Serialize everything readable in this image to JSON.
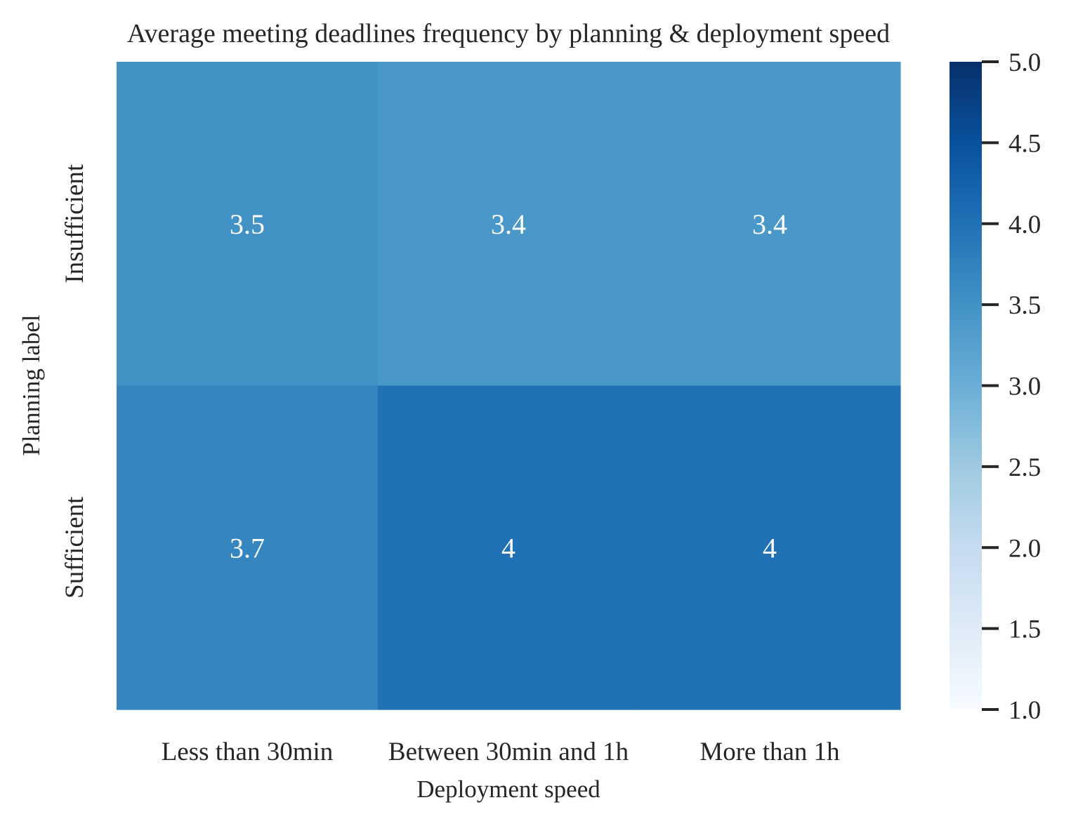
{
  "chart_data": {
    "type": "heatmap",
    "title": "Average meeting deadlines frequency by planning & deployment speed",
    "xlabel": "Deployment speed",
    "ylabel": "Planning label",
    "x_categories": [
      "Less than 30min",
      "Between 30min and 1h",
      "More than 1h"
    ],
    "y_categories": [
      "Insufficient",
      "Sufficient"
    ],
    "values": [
      [
        3.5,
        3.4,
        3.4
      ],
      [
        3.7,
        4.0,
        4.0
      ]
    ],
    "annotations": [
      [
        "3.5",
        "3.4",
        "3.4"
      ],
      [
        "3.7",
        "4",
        "4"
      ]
    ],
    "colorbar": {
      "min": 1.0,
      "max": 5.0,
      "ticks": [
        "1.0",
        "1.5",
        "2.0",
        "2.5",
        "3.0",
        "3.5",
        "4.0",
        "4.5",
        "5.0"
      ],
      "colormap": "Blues",
      "stops": [
        "#f7fbff",
        "#deebf7",
        "#c6dbef",
        "#9ecae1",
        "#6baed6",
        "#4292c6",
        "#2171b5",
        "#08519c",
        "#08306b"
      ]
    },
    "annotation_color": "#ffffff"
  }
}
